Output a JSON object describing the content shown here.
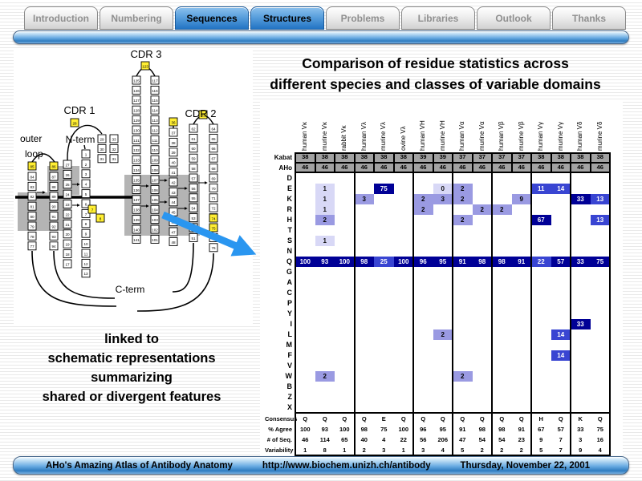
{
  "tabs": [
    {
      "label": "Introduction",
      "active": false
    },
    {
      "label": "Numbering",
      "active": false
    },
    {
      "label": "Sequences",
      "active": true
    },
    {
      "label": "Structures",
      "active": true
    },
    {
      "label": "Problems",
      "active": false
    },
    {
      "label": "Libraries",
      "active": false
    },
    {
      "label": "Outlook",
      "active": false
    },
    {
      "label": "Thanks",
      "active": false
    }
  ],
  "title": {
    "line1": "Comparison of residue statistics across",
    "line2": "different species and classes of variable domains"
  },
  "diagram": {
    "labels": {
      "cdr1": "CDR 1",
      "cdr2": "CDR 2",
      "cdr3": "CDR 3",
      "outer": "outer",
      "loop": "loop",
      "nterm": "N-term",
      "cterm": "C-term"
    }
  },
  "caption": {
    "lines": [
      "linked to",
      "schematic representations",
      "summarizing",
      "shared or divergent features"
    ]
  },
  "table": {
    "columns": [
      "human Vκ",
      "murine Vκ",
      "rabbit Vκ",
      "human Vλ",
      "murine Vλ",
      "ovine Vλ",
      "human VH",
      "murine VH",
      "human Vα",
      "murine Vα",
      "human Vβ",
      "murine Vβ",
      "human Vγ",
      "murine Vγ",
      "human Vδ",
      "murine Vδ"
    ],
    "groups": [
      3,
      3,
      2,
      2,
      2,
      2,
      2
    ],
    "position_row_labels": [
      "Kabat",
      "AHo"
    ],
    "kabat": [
      "38",
      "38",
      "38",
      "38",
      "38",
      "38",
      "39",
      "39",
      "37",
      "37",
      "37",
      "37",
      "38",
      "38",
      "38",
      "38"
    ],
    "aho": [
      "46",
      "46",
      "46",
      "46",
      "46",
      "46",
      "46",
      "46",
      "46",
      "46",
      "46",
      "46",
      "46",
      "46",
      "46",
      "46"
    ],
    "residues": [
      "D",
      "E",
      "K",
      "R",
      "H",
      "T",
      "S",
      "N",
      "Q",
      "G",
      "A",
      "C",
      "P",
      "Y",
      "I",
      "L",
      "M",
      "F",
      "V",
      "W",
      "B",
      "Z",
      "X"
    ],
    "cells": {
      "E": [
        {
          "c": 1,
          "v": "1",
          "lv": "light"
        },
        {
          "c": 4,
          "v": "75",
          "lv": "navy"
        },
        {
          "c": 7,
          "v": "0",
          "lv": "light"
        },
        {
          "c": 8,
          "v": "2",
          "lv": "mid"
        },
        {
          "c": 12,
          "v": "11",
          "lv": "royal"
        },
        {
          "c": 13,
          "v": "14",
          "lv": "royal"
        }
      ],
      "K": [
        {
          "c": 1,
          "v": "1",
          "lv": "light"
        },
        {
          "c": 3,
          "v": "3",
          "lv": "mid"
        },
        {
          "c": 6,
          "v": "2",
          "lv": "mid"
        },
        {
          "c": 7,
          "v": "3",
          "lv": "mid"
        },
        {
          "c": 8,
          "v": "2",
          "lv": "mid"
        },
        {
          "c": 11,
          "v": "9",
          "lv": "mid"
        },
        {
          "c": 14,
          "v": "33",
          "lv": "navy"
        },
        {
          "c": 15,
          "v": "13",
          "lv": "royal"
        }
      ],
      "R": [
        {
          "c": 1,
          "v": "1",
          "lv": "light"
        },
        {
          "c": 6,
          "v": "2",
          "lv": "mid"
        },
        {
          "c": 9,
          "v": "2",
          "lv": "mid"
        },
        {
          "c": 10,
          "v": "2",
          "lv": "mid"
        }
      ],
      "H": [
        {
          "c": 1,
          "v": "2",
          "lv": "mid"
        },
        {
          "c": 8,
          "v": "2",
          "lv": "mid"
        },
        {
          "c": 12,
          "v": "67",
          "lv": "navy"
        },
        {
          "c": 15,
          "v": "13",
          "lv": "royal"
        }
      ],
      "S": [
        {
          "c": 1,
          "v": "1",
          "lv": "light"
        }
      ],
      "I": [
        {
          "c": 14,
          "v": "33",
          "lv": "navy"
        }
      ],
      "L": [
        {
          "c": 7,
          "v": "2",
          "lv": "mid"
        },
        {
          "c": 13,
          "v": "14",
          "lv": "royal"
        }
      ],
      "F": [
        {
          "c": 13,
          "v": "14",
          "lv": "royal"
        }
      ],
      "W": [
        {
          "c": 1,
          "v": "2",
          "lv": "mid"
        },
        {
          "c": 8,
          "v": "2",
          "lv": "mid"
        }
      ]
    },
    "q_row": {
      "residue": "Q",
      "values": [
        "100",
        "93",
        "100",
        "98",
        "25",
        "100",
        "96",
        "95",
        "91",
        "98",
        "98",
        "91",
        "22",
        "57",
        "33",
        "75"
      ],
      "royal_indices": [
        4,
        12
      ]
    },
    "stats_labels": [
      "Consensus",
      "% Agree",
      "# of Seq.",
      "Variability"
    ],
    "consensus": [
      "Q",
      "Q",
      "Q",
      "Q",
      "E",
      "Q",
      "Q",
      "Q",
      "Q",
      "Q",
      "Q",
      "Q",
      "H",
      "Q",
      "K",
      "Q"
    ],
    "pct_agree": [
      "100",
      "93",
      "100",
      "98",
      "75",
      "100",
      "96",
      "95",
      "91",
      "98",
      "98",
      "91",
      "67",
      "57",
      "33",
      "75"
    ],
    "num_seq": [
      "46",
      "114",
      "65",
      "40",
      "4",
      "22",
      "56",
      "206",
      "47",
      "54",
      "54",
      "23",
      "9",
      "7",
      "3",
      "16"
    ],
    "variability": [
      "1",
      "8",
      "1",
      "2",
      "3",
      "1",
      "3",
      "4",
      "5",
      "2",
      "2",
      "2",
      "5",
      "7",
      "9",
      "4"
    ]
  },
  "footer": {
    "left": "AHo's Amazing Atlas of Antibody Anatomy",
    "center": "http://www.biochem.unizh.ch/antibody",
    "right": "Thursday, November 22, 2001"
  },
  "colors": {
    "cell_light": "#d8d8f6",
    "cell_mid": "#9a9ae2",
    "cell_royal": "#3945d2",
    "cell_navy": "#000096",
    "arrow": "#2a96f0",
    "position_row_bg": "#a2a2a2"
  }
}
